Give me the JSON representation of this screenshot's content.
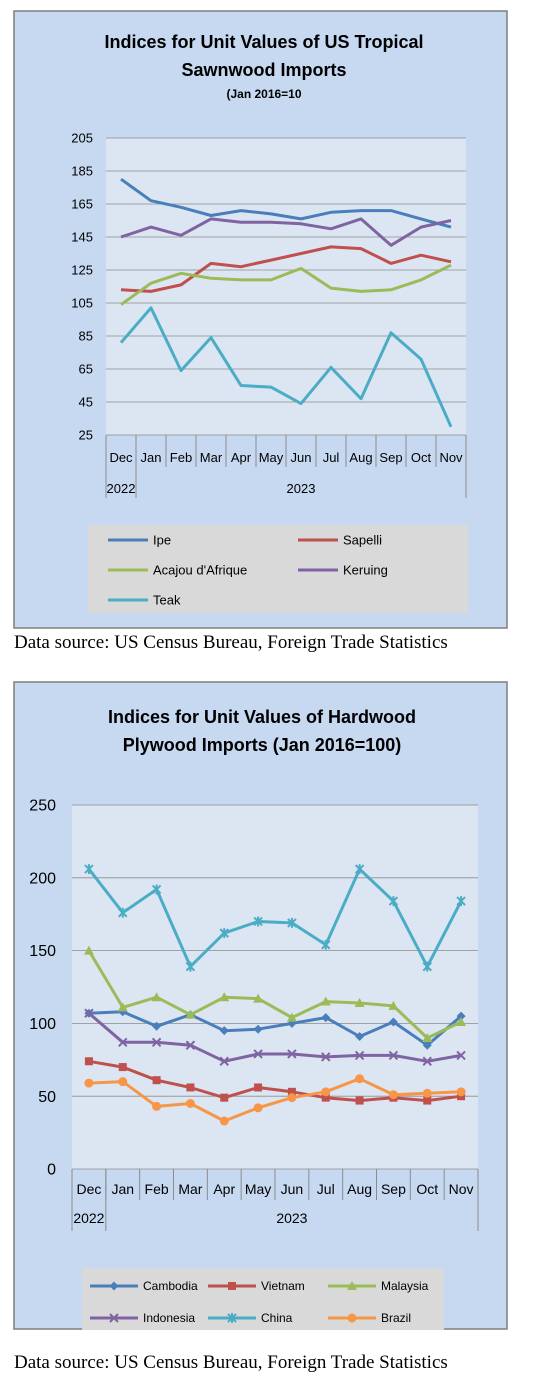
{
  "chart_data": [
    {
      "type": "line",
      "title": "Indices for Unit Values of US Tropical Sawnwood Imports",
      "title_lines": [
        "Indices for Unit Values of US Tropical",
        "Sawnwood Imports"
      ],
      "subtitle": "(Jan 2016=10",
      "categories": [
        "Dec",
        "Jan",
        "Feb",
        "Mar",
        "Apr",
        "May",
        "Jun",
        "Jul",
        "Aug",
        "Sep",
        "Oct",
        "Nov"
      ],
      "year_labels": [
        {
          "label": "2022",
          "start": 0,
          "end": 0
        },
        {
          "label": "2023",
          "start": 1,
          "end": 11
        }
      ],
      "ylim": [
        25,
        205
      ],
      "yticks": [
        25,
        45,
        65,
        85,
        105,
        125,
        145,
        165,
        185,
        205
      ],
      "grid": true,
      "legend_position": "bottom",
      "series": [
        {
          "name": "Ipe",
          "color": "#4a7ebb",
          "values": [
            180,
            167,
            163,
            158,
            161,
            159,
            156,
            160,
            161,
            161,
            156,
            151
          ]
        },
        {
          "name": "Sapelli",
          "color": "#c0504d",
          "values": [
            113,
            112,
            116,
            129,
            127,
            131,
            135,
            139,
            138,
            129,
            134,
            130
          ]
        },
        {
          "name": "Acajou d'Afrique",
          "color": "#9bbb59",
          "values": [
            104,
            117,
            123,
            120,
            119,
            119,
            126,
            114,
            112,
            113,
            119,
            128
          ]
        },
        {
          "name": "Keruing",
          "color": "#8064a2",
          "values": [
            145,
            151,
            146,
            156,
            154,
            154,
            153,
            150,
            156,
            140,
            151,
            155
          ]
        },
        {
          "name": "Teak",
          "color": "#4bacc6",
          "values": [
            81,
            102,
            64,
            84,
            55,
            54,
            44,
            66,
            47,
            87,
            71,
            30
          ]
        }
      ]
    },
    {
      "type": "line",
      "title": "Indices for Unit Values of Hardwood Plywood Imports (Jan 2016=100)",
      "title_lines": [
        "Indices for Unit Values of Hardwood",
        "Plywood Imports (Jan 2016=100)"
      ],
      "categories": [
        "Dec",
        "Jan",
        "Feb",
        "Mar",
        "Apr",
        "May",
        "Jun",
        "Jul",
        "Aug",
        "Sep",
        "Oct",
        "Nov"
      ],
      "year_labels": [
        {
          "label": "2022",
          "start": 0,
          "end": 0
        },
        {
          "label": "2023",
          "start": 1,
          "end": 11
        }
      ],
      "ylim": [
        0,
        250
      ],
      "yticks": [
        0,
        50,
        100,
        150,
        200,
        250
      ],
      "grid": true,
      "legend_position": "bottom",
      "series": [
        {
          "name": "Cambodia",
          "color": "#4a7ebb",
          "marker": "diamond",
          "values": [
            107,
            108,
            98,
            106,
            95,
            96,
            100,
            104,
            91,
            101,
            85,
            105
          ]
        },
        {
          "name": "Vietnam",
          "color": "#c0504d",
          "marker": "square",
          "values": [
            74,
            70,
            61,
            56,
            49,
            56,
            53,
            49,
            47,
            49,
            47,
            50
          ]
        },
        {
          "name": "Malaysia",
          "color": "#9bbb59",
          "marker": "triangle",
          "values": [
            150,
            111,
            118,
            106,
            118,
            117,
            104,
            115,
            114,
            112,
            90,
            101
          ]
        },
        {
          "name": "Indonesia",
          "color": "#8064a2",
          "marker": "x",
          "values": [
            107,
            87,
            87,
            85,
            74,
            79,
            79,
            77,
            78,
            78,
            74,
            78
          ]
        },
        {
          "name": "China",
          "color": "#4bacc6",
          "marker": "star",
          "values": [
            206,
            176,
            192,
            139,
            162,
            170,
            169,
            154,
            206,
            184,
            139,
            184
          ]
        },
        {
          "name": "Brazil",
          "color": "#f79646",
          "marker": "circle",
          "values": [
            59,
            60,
            43,
            45,
            33,
            42,
            49,
            53,
            62,
            51,
            52,
            53
          ]
        }
      ]
    }
  ],
  "sources": [
    "Data source: US Census Bureau, Foreign Trade Statistics",
    "Data source: US Census Bureau, Foreign Trade Statistics"
  ]
}
